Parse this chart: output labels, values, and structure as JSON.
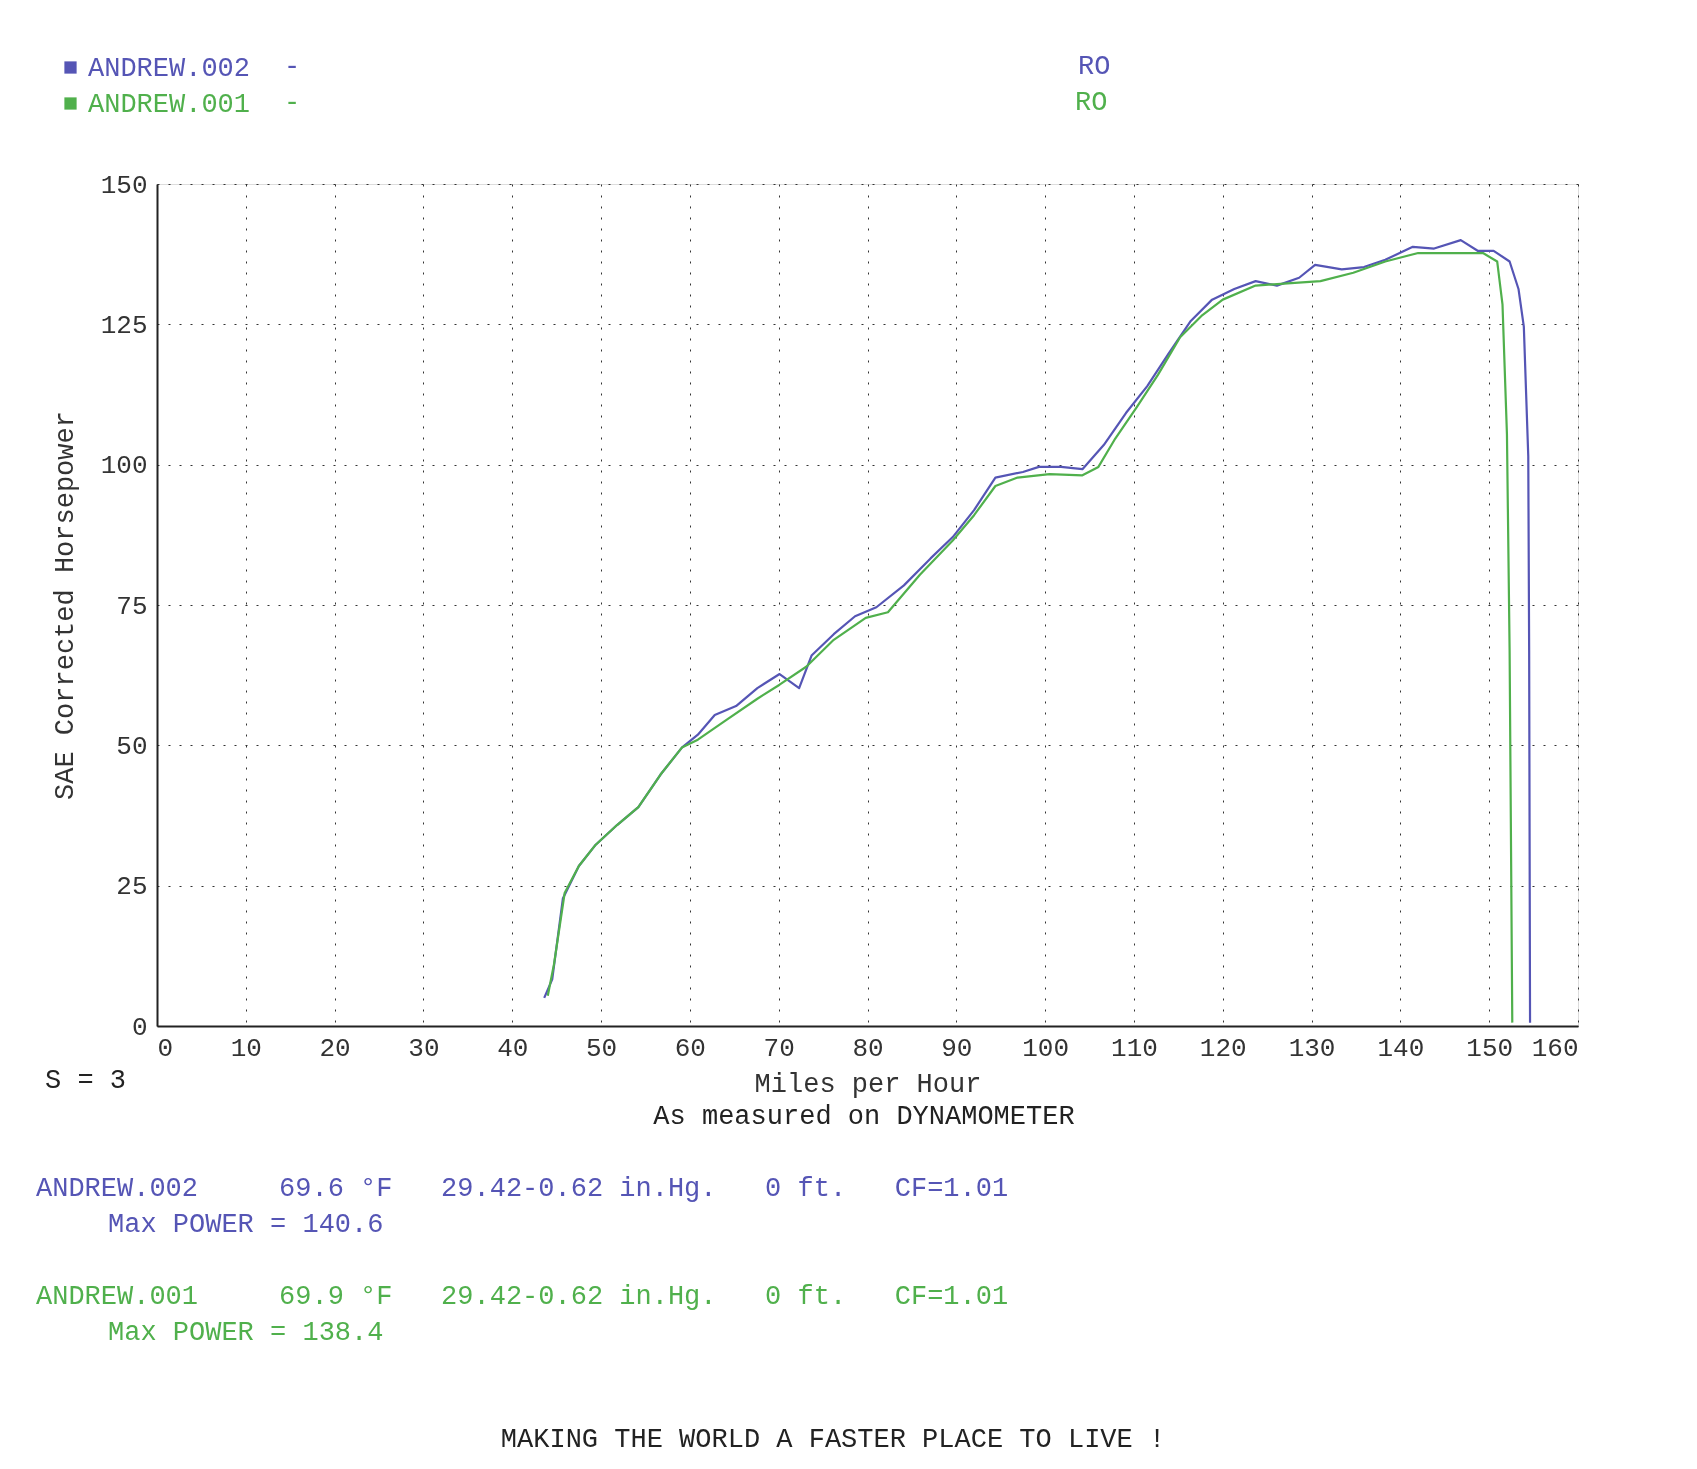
{
  "chart_data": {
    "type": "line",
    "xlabel": "Miles per Hour",
    "ylabel": "SAE Corrected Horsepower",
    "xlim": [
      0,
      160
    ],
    "xticks": [
      0,
      10,
      20,
      30,
      40,
      50,
      60,
      70,
      80,
      90,
      100,
      110,
      120,
      130,
      140,
      150,
      160
    ],
    "ylim": [
      0,
      150
    ],
    "yticks": [
      0,
      25,
      50,
      75,
      100,
      125,
      150
    ],
    "grid": true,
    "legend": "top left",
    "line_style": "solid",
    "series": [
      {
        "name": "ANDREW.002",
        "color": "#5555b5",
        "x": [
          43.6,
          44.5,
          45.7,
          47.5,
          49.4,
          51.8,
          54.2,
          56.7,
          59.1,
          60.9,
          62.8,
          65.2,
          67.6,
          70.1,
          72.3,
          73.7,
          76.2,
          78.6,
          81,
          84.1,
          87.1,
          89.6,
          92,
          94.4,
          97.5,
          99.3,
          101.8,
          104.2,
          106.6,
          109.1,
          111.5,
          113.9,
          116.4,
          118.8,
          121.3,
          123.7,
          126.1,
          128.6,
          130.4,
          133.4,
          135.9,
          138.3,
          141.4,
          143.8,
          146.8,
          148.7,
          150.5,
          152.3,
          153.3,
          153.9,
          154.4,
          154.5,
          154.6
        ],
        "values": [
          5,
          8.3,
          22.7,
          28.5,
          32.3,
          35.8,
          39,
          44.8,
          49.6,
          51.9,
          55.4,
          57,
          60.2,
          62.7,
          60.2,
          66,
          69.8,
          73,
          74.6,
          78.5,
          83.3,
          87.1,
          91.9,
          97.7,
          98.7,
          99.6,
          99.6,
          99.2,
          103.5,
          109.2,
          114,
          119.8,
          125.6,
          129.4,
          131.3,
          132.7,
          131.9,
          133.3,
          135.6,
          134.8,
          135.2,
          136.5,
          138.8,
          138.5,
          140,
          138.1,
          138.1,
          136.2,
          131.3,
          124.6,
          101.5,
          66.9,
          0.6
        ]
      },
      {
        "name": "ANDREW.001",
        "color": "#50b04c",
        "x": [
          44,
          44.7,
          45.9,
          47.5,
          49.4,
          51.8,
          54.2,
          56.7,
          59.1,
          60.9,
          64,
          67.6,
          70.1,
          73.1,
          76.2,
          79.8,
          82.3,
          85.9,
          89.6,
          92,
          94.4,
          96.9,
          100.5,
          104.2,
          106,
          107.8,
          110.3,
          112.7,
          115.2,
          117.6,
          120,
          123.7,
          127.3,
          131,
          134.7,
          138.3,
          142,
          145.6,
          149.3,
          150.9,
          151.5,
          152,
          152.3,
          152.6
        ],
        "values": [
          5.4,
          11,
          23.7,
          28.5,
          32.3,
          35.8,
          39,
          44.8,
          49.6,
          51,
          54.4,
          58.3,
          60.8,
          64,
          68.8,
          72.7,
          73.7,
          80.4,
          86.5,
          91,
          96.2,
          97.7,
          98.3,
          98.1,
          99.6,
          104.4,
          110.2,
          116,
          122.7,
          126.5,
          129.4,
          131.9,
          132.3,
          132.7,
          134.2,
          136.2,
          137.7,
          137.7,
          137.7,
          136.2,
          128.5,
          105.4,
          66.9,
          0.6
        ]
      }
    ],
    "annotations": [
      "-",
      "-",
      "RO",
      "RO",
      "S = 3",
      "As measured on DYNAMOMETER",
      "ANDREW.002     69.6 °F   29.42-0.62 in.Hg.   0 ft.   CF=1.01",
      "Max POWER = 140.6",
      "ANDREW.001     69.9 °F   29.42-0.62 in.Hg.   0 ft.   CF=1.01",
      "Max POWER = 138.4",
      "MAKING THE WORLD A FASTER PLACE TO LIVE !"
    ]
  }
}
